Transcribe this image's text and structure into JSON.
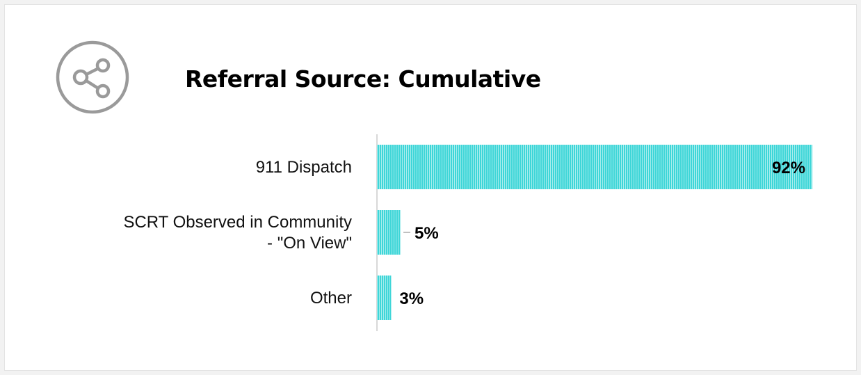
{
  "header": {
    "title": "Referral Source: Cumulative",
    "icon": "share-icon"
  },
  "colors": {
    "bar": "#3ed6d8",
    "bar_stripe": "#ffffff",
    "icon": "#9a9a9a",
    "axis": "#cccccc"
  },
  "chart_data": {
    "type": "bar",
    "orientation": "horizontal",
    "title": "Referral Source: Cumulative",
    "categories": [
      [
        "911 Dispatch"
      ],
      [
        "SCRT Observed in Community",
        "- \"On View\""
      ],
      [
        "Other"
      ]
    ],
    "values": [
      92,
      5,
      3
    ],
    "value_labels": [
      "92%",
      "5%",
      "3%"
    ],
    "xlim": [
      0,
      100
    ],
    "grid": false,
    "legend": "none"
  }
}
